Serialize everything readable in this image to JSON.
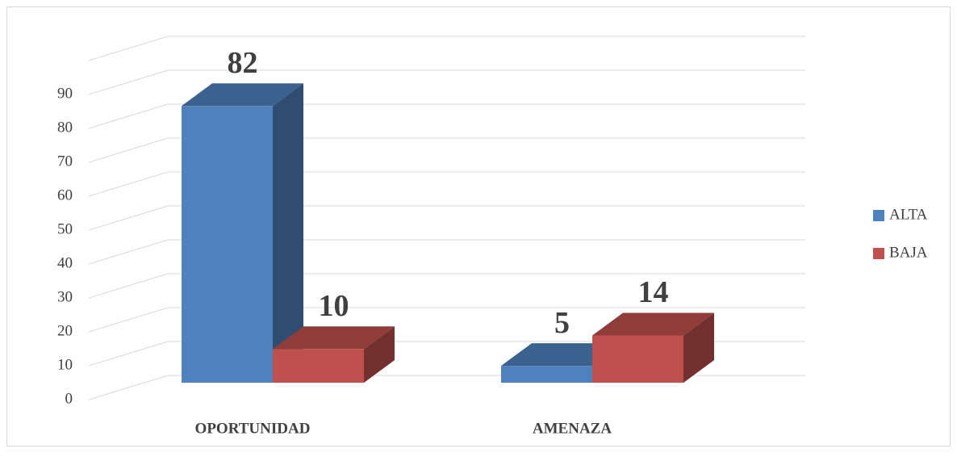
{
  "chart_data": {
    "type": "bar3d",
    "categories": [
      "OPORTUNIDAD",
      "AMENAZA"
    ],
    "series": [
      {
        "name": "ALTA",
        "color": "#4f81bd",
        "values": [
          82,
          5
        ]
      },
      {
        "name": "BAJA",
        "color": "#c0504d",
        "values": [
          10,
          14
        ]
      }
    ],
    "ylim": [
      0,
      100
    ],
    "yticks": [
      0,
      10,
      20,
      30,
      40,
      50,
      60,
      70,
      80,
      90
    ],
    "grid": true,
    "legend": "right",
    "data_labels": true
  }
}
